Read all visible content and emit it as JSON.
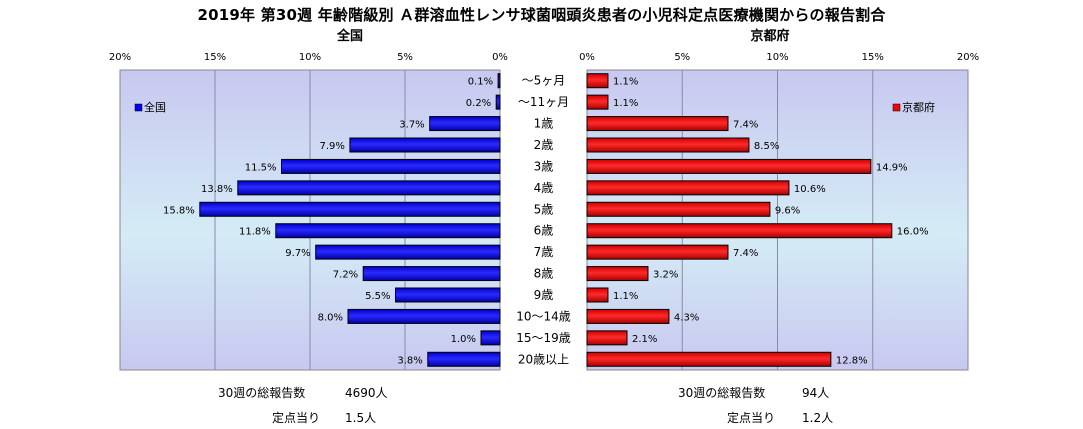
{
  "title": "2019年 第30週 年齢階級別 Ａ群溶血性レンサ球菌咽頭炎患者の小児科定点医療機関からの報告割合",
  "chart_data": {
    "type": "bar",
    "orientation": "horizontal-butterfly",
    "categories": [
      "～5ヶ月",
      "～11ヶ月",
      "1歳",
      "2歳",
      "3歳",
      "4歳",
      "5歳",
      "6歳",
      "7歳",
      "8歳",
      "9歳",
      "10～14歳",
      "15～19歳",
      "20歳以上"
    ],
    "xlim": [
      0,
      20
    ],
    "ticks": [
      "20%",
      "15%",
      "10%",
      "5%",
      "0%"
    ],
    "ticks_right": [
      "0%",
      "5%",
      "10%",
      "15%",
      "20%"
    ],
    "series": [
      {
        "name": "全国",
        "panel_title": "全国",
        "color": "#0000ff",
        "values": [
          0.1,
          0.2,
          3.7,
          7.9,
          11.5,
          13.8,
          15.8,
          11.8,
          9.7,
          7.2,
          5.5,
          8.0,
          1.0,
          3.8
        ],
        "labels": [
          "0.1%",
          "0.2%",
          "3.7%",
          "7.9%",
          "11.5%",
          "13.8%",
          "15.8%",
          "11.8%",
          "9.7%",
          "7.2%",
          "5.5%",
          "8.0%",
          "1.0%",
          "3.8%"
        ]
      },
      {
        "name": "京都府",
        "panel_title": "京都府",
        "color": "#ff0000",
        "values": [
          1.1,
          1.1,
          7.4,
          8.5,
          14.9,
          10.6,
          9.6,
          16.0,
          7.4,
          3.2,
          1.1,
          4.3,
          2.1,
          12.8
        ],
        "labels": [
          "1.1%",
          "1.1%",
          "7.4%",
          "8.5%",
          "14.9%",
          "10.6%",
          "9.6%",
          "16.0%",
          "7.4%",
          "3.2%",
          "1.1%",
          "4.3%",
          "2.1%",
          "12.8%"
        ]
      }
    ],
    "legend": "inside-top",
    "grid": true
  },
  "footer": {
    "national_total_label": "30週の総報告数",
    "national_total_value": "4690人",
    "national_per_label": "定点当り",
    "national_per_value": "1.5人",
    "kyoto_total_label": "30週の総報告数",
    "kyoto_total_value": "94人",
    "kyoto_per_label": "定点当り",
    "kyoto_per_value": "1.2人"
  }
}
